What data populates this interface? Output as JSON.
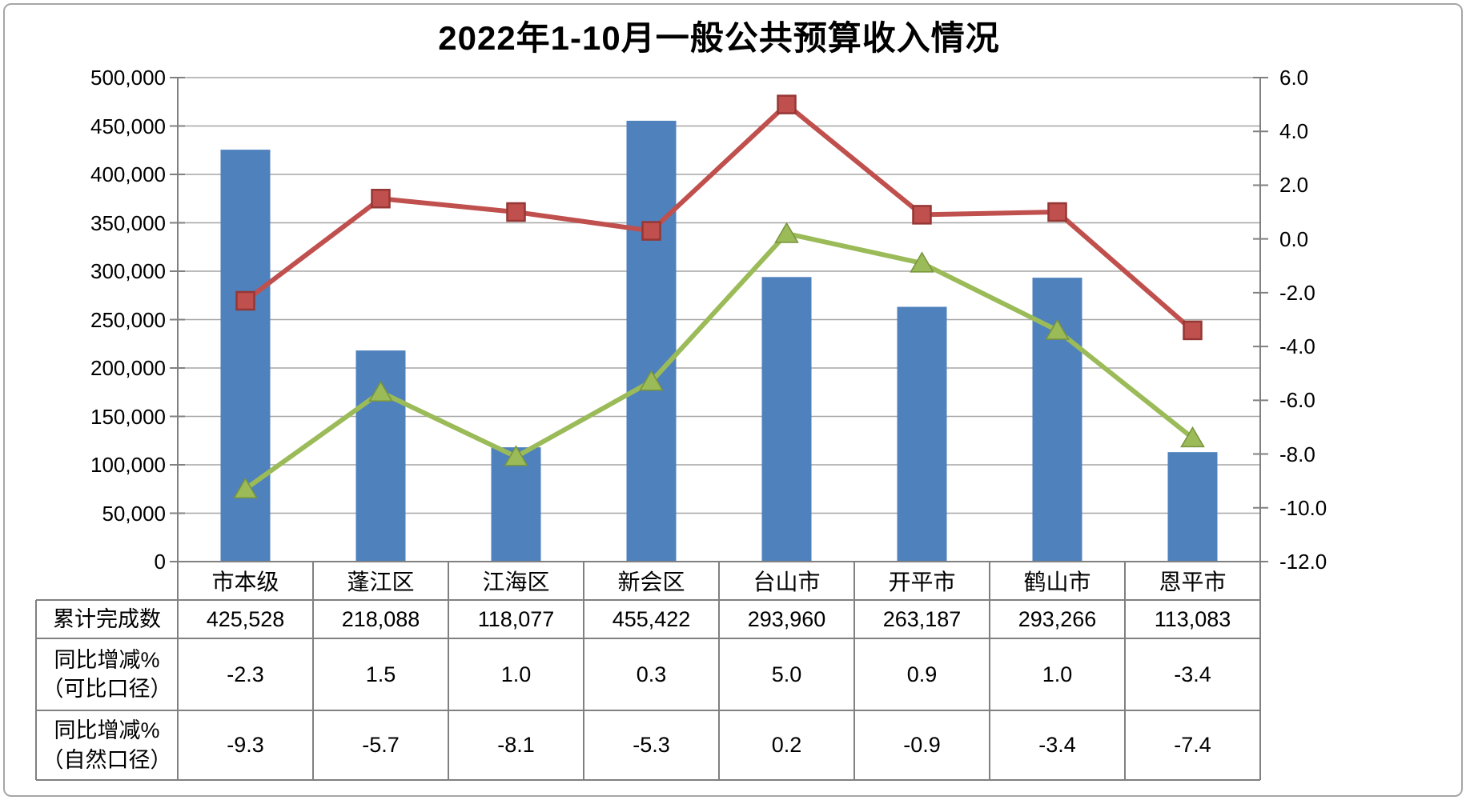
{
  "title": "2022年1-10月一般公共预算收入情况",
  "colors": {
    "bar_blue": "#4F81BD",
    "line_red": "#C0504D",
    "line_red_border": "#953735",
    "line_green": "#9BBB59",
    "line_green_border": "#77933C",
    "gridline": "#A6A6A6",
    "axis_and_table_border": "#808080",
    "text": "#000000"
  },
  "chart_data": {
    "type": "bar",
    "subtype": "combo-bar-line-dual-axis",
    "title": "2022年1-10月一般公共预算收入情况",
    "categories": [
      "市本级",
      "蓬江区",
      "江海区",
      "新会区",
      "台山市",
      "开平市",
      "鹤山市",
      "恩平市"
    ],
    "series": [
      {
        "name": "累计完成数",
        "type": "bar",
        "axis": "left",
        "color": "#4F81BD",
        "values": [
          425528,
          218088,
          118077,
          455422,
          293960,
          263187,
          293266,
          113083
        ]
      },
      {
        "name": "同比增减%（可比口径）",
        "type": "line",
        "marker": "square",
        "axis": "right",
        "color": "#C0504D",
        "values": [
          -2.3,
          1.5,
          1.0,
          0.3,
          5.0,
          0.9,
          1.0,
          -3.4
        ]
      },
      {
        "name": "同比增减%（自然口径）",
        "type": "line",
        "marker": "triangle",
        "axis": "right",
        "color": "#9BBB59",
        "values": [
          -9.3,
          -5.7,
          -8.1,
          -5.3,
          0.2,
          -0.9,
          -3.4,
          -7.4
        ]
      }
    ],
    "left_axis": {
      "min": 0,
      "max": 500000,
      "step": 50000,
      "tick_labels": [
        "500,000",
        "450,000",
        "400,000",
        "350,000",
        "300,000",
        "250,000",
        "200,000",
        "150,000",
        "100,000",
        "50,000",
        "0"
      ]
    },
    "right_axis": {
      "min": -12.0,
      "max": 6.0,
      "step": 2.0,
      "tick_labels": [
        "6.0",
        "4.0",
        "2.0",
        "0.0",
        "-2.0",
        "-4.0",
        "-6.0",
        "-8.0",
        "-10.0",
        "-12.0"
      ]
    },
    "grid": true,
    "legend_position": "none (data table acts as legend)"
  },
  "table": {
    "rows": [
      {
        "header_lines": [
          "累计完成数"
        ],
        "values": [
          "425,528",
          "218,088",
          "118,077",
          "455,422",
          "293,960",
          "263,187",
          "293,266",
          "113,083"
        ]
      },
      {
        "header_lines": [
          "同比增减%",
          "（可比口径）"
        ],
        "values": [
          "-2.3",
          "1.5",
          "1.0",
          "0.3",
          "5.0",
          "0.9",
          "1.0",
          "-3.4"
        ]
      },
      {
        "header_lines": [
          "同比增减%",
          "（自然口径）"
        ],
        "values": [
          "-9.3",
          "-5.7",
          "-8.1",
          "-5.3",
          "0.2",
          "-0.9",
          "-3.4",
          "-7.4"
        ]
      }
    ]
  }
}
